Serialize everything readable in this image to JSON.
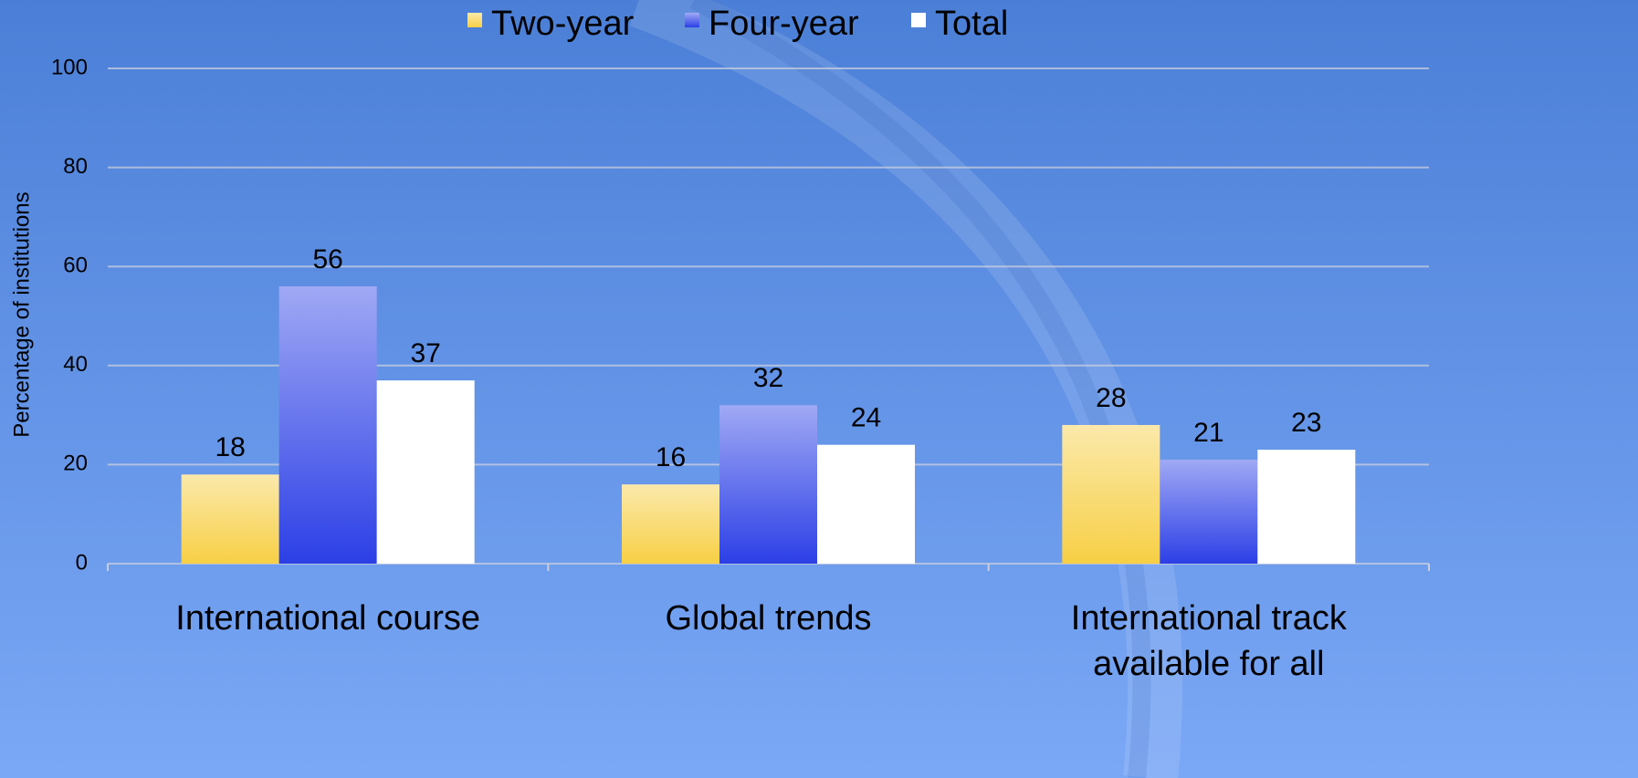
{
  "chart_data": {
    "type": "bar",
    "y_label": "Percentage of institutions",
    "categories": [
      "International course",
      "Global trends",
      "International track available for all"
    ],
    "series": [
      {
        "name": "Two-year",
        "color": "#f7cf45",
        "values": [
          18,
          16,
          28
        ]
      },
      {
        "name": "Four-year",
        "color": "#2c3fe6",
        "values": [
          56,
          32,
          21
        ]
      },
      {
        "name": "Total",
        "color": "#ffffff",
        "values": [
          37,
          24,
          23
        ]
      }
    ],
    "ylim": [
      0,
      100
    ],
    "yticks": [
      0,
      20,
      40,
      60,
      80,
      100
    ],
    "grid": true,
    "legend": "top"
  }
}
